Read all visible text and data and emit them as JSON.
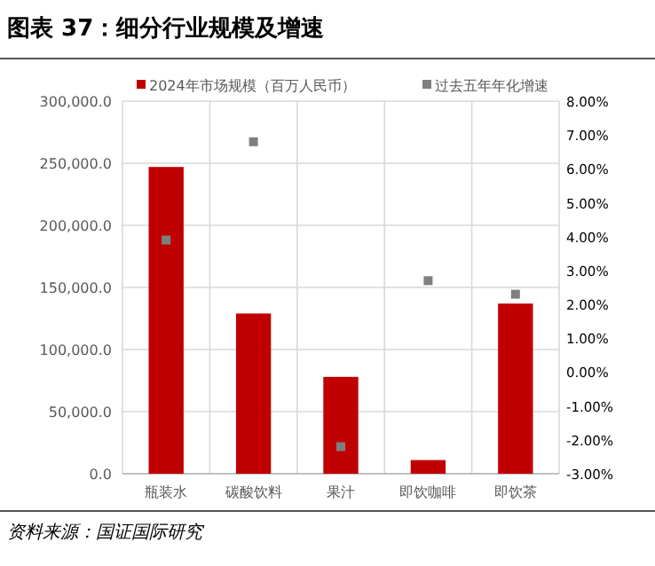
{
  "chart_data": {
    "type": "bar",
    "title": "图表 37：细分行业规模及增速",
    "categories": [
      "瓶装水",
      "碳酸饮料",
      "果汁",
      "即饮咖啡",
      "即饮茶"
    ],
    "series": [
      {
        "name": "2024年市场规模（百万人民币）",
        "color": "#c00000",
        "values": [
          247000,
          129000,
          78000,
          11000,
          137000
        ]
      },
      {
        "name": "过去五年年化增速",
        "type": "scatter",
        "axis": "y2",
        "marker": "square",
        "color": "#7f7f7f",
        "values": [
          3.9,
          6.8,
          -2.2,
          2.7,
          2.3
        ]
      }
    ],
    "ylim": [
      0,
      300000
    ],
    "yticks": [
      {
        "value": 0,
        "label": "0.0"
      },
      {
        "value": 50000,
        "label": "50,000.0"
      },
      {
        "value": 100000,
        "label": "100,000.0"
      },
      {
        "value": 150000,
        "label": "150,000.0"
      },
      {
        "value": 200000,
        "label": "200,000.0"
      },
      {
        "value": 250000,
        "label": "250,000.0"
      },
      {
        "value": 300000,
        "label": "300,000.0"
      }
    ],
    "y2lim": [
      -3,
      8
    ],
    "y2ticks": [
      {
        "value": -3,
        "label": "-3.00%"
      },
      {
        "value": -2,
        "label": "-2.00%"
      },
      {
        "value": -1,
        "label": "-1.00%"
      },
      {
        "value": 0,
        "label": "0.00%"
      },
      {
        "value": 1,
        "label": "1.00%"
      },
      {
        "value": 2,
        "label": "2.00%"
      },
      {
        "value": 3,
        "label": "3.00%"
      },
      {
        "value": 4,
        "label": "4.00%"
      },
      {
        "value": 5,
        "label": "5.00%"
      },
      {
        "value": 6,
        "label": "6.00%"
      },
      {
        "value": 7,
        "label": "7.00%"
      },
      {
        "value": 8,
        "label": "8.00%"
      }
    ],
    "grid": true,
    "legend": "top",
    "annotations": [
      "资料来源：国证国际研究"
    ]
  }
}
